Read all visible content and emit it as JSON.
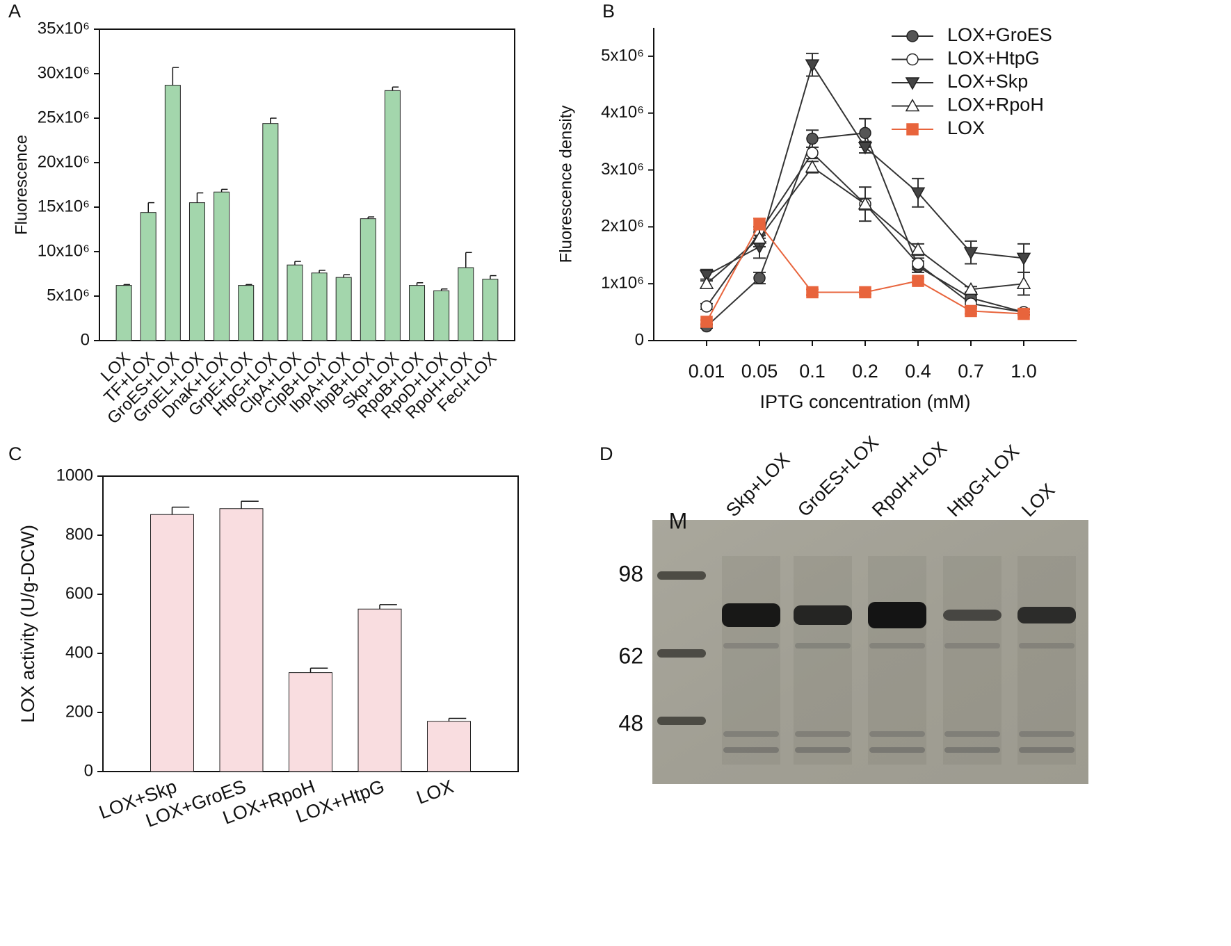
{
  "chart_data": [
    {
      "type": "bar",
      "panel_label": "A",
      "y_label": "Fluorescence",
      "color": "#a3d6ac",
      "categories": [
        "LOX",
        "TF+LOX",
        "GroES+LOX",
        "GroEL+LOX",
        "DnaK+LOX",
        "GrpE+LOX",
        "HtpG+LOX",
        "ClpA+LOX",
        "ClpB+LOX",
        "IbpA+LOX",
        "IbpB+LOX",
        "Skp+LOX",
        "RpoB+LOX",
        "RpoD+LOX",
        "RpoH+LOX",
        "FecI+LOX"
      ],
      "values": [
        6200000,
        14400000,
        28700000,
        15500000,
        16700000,
        6200000,
        24400000,
        8500000,
        7600000,
        7100000,
        13700000,
        28100000,
        6200000,
        5600000,
        8200000,
        6900000
      ],
      "errors": [
        100000,
        1100000,
        2000000,
        1100000,
        300000,
        100000,
        600000,
        400000,
        300000,
        300000,
        200000,
        400000,
        300000,
        200000,
        1700000,
        400000
      ],
      "ylim": [
        0,
        35000000
      ],
      "yticks": [
        0,
        {
          "value": 5000000,
          "label": "5x10⁶"
        },
        {
          "value": 10000000,
          "label": "10x10⁶"
        },
        {
          "value": 15000000,
          "label": "15x10⁶"
        },
        {
          "value": 20000000,
          "label": "20x10⁶"
        },
        {
          "value": 25000000,
          "label": "25x10⁶"
        },
        {
          "value": 30000000,
          "label": "30x10⁶"
        },
        {
          "value": 35000000,
          "label": "35x10⁶"
        }
      ],
      "frame": true
    },
    {
      "type": "line",
      "panel_label": "B",
      "y_label": "Fluorescence density",
      "x_label": "IPTG concentration (mM)",
      "categories": [
        "0.01",
        "0.05",
        "0.1",
        "0.2",
        "0.4",
        "0.7",
        "1.0"
      ],
      "series": [
        {
          "name": "LOX+GroES",
          "color": "#333333",
          "marker": "circle",
          "marker_fill": "#555555",
          "values": [
            250000,
            1100000,
            3550000,
            3650000,
            1300000,
            750000,
            500000
          ],
          "errors": [
            30000,
            100000,
            150000,
            250000,
            100000,
            50000,
            50000
          ]
        },
        {
          "name": "LOX+HtpG",
          "color": "#333333",
          "marker": "circle",
          "marker_fill": "#ffffff",
          "values": [
            600000,
            1900000,
            3300000,
            2400000,
            1350000,
            650000,
            500000
          ],
          "errors": [
            50000,
            100000,
            100000,
            300000,
            100000,
            50000,
            50000
          ]
        },
        {
          "name": "LOX+Skp",
          "color": "#333333",
          "marker": "triangle-down",
          "marker_fill": "#444444",
          "values": [
            1150000,
            1650000,
            4850000,
            3400000,
            2600000,
            1550000,
            1450000
          ],
          "errors": [
            100000,
            200000,
            200000,
            100000,
            250000,
            200000,
            250000
          ]
        },
        {
          "name": "LOX+RpoH",
          "color": "#333333",
          "marker": "triangle-up",
          "marker_fill": "#ffffff",
          "values": [
            1000000,
            1800000,
            3050000,
            2400000,
            1600000,
            900000,
            1000000
          ],
          "errors": [
            80000,
            150000,
            100000,
            100000,
            100000,
            50000,
            200000
          ]
        },
        {
          "name": "LOX",
          "color": "#e8643c",
          "marker": "square",
          "marker_fill": "#e8643c",
          "values": [
            330000,
            2050000,
            850000,
            850000,
            1050000,
            520000,
            470000
          ],
          "errors": [
            30000,
            100000,
            50000,
            30000,
            50000,
            50000,
            30000
          ]
        }
      ],
      "ylim": [
        0,
        5500000
      ],
      "yticks": [
        0,
        {
          "value": 1000000,
          "label": "1x10⁶"
        },
        {
          "value": 2000000,
          "label": "2x10⁶"
        },
        {
          "value": 3000000,
          "label": "3x10⁶"
        },
        {
          "value": 4000000,
          "label": "4x10⁶"
        },
        {
          "value": 5000000,
          "label": "5x10⁶"
        }
      ],
      "legend": "top-right",
      "frame": false
    },
    {
      "type": "bar",
      "panel_label": "C",
      "y_label": "LOX activity (U/g-DCW)",
      "color": "#f9dde0",
      "categories": [
        "LOX+Skp",
        "LOX+GroES",
        "LOX+RpoH",
        "LOX+HtpG",
        "LOX"
      ],
      "values": [
        870,
        890,
        335,
        550,
        170
      ],
      "errors": [
        25,
        25,
        15,
        15,
        10
      ],
      "ylim": [
        0,
        1000
      ],
      "yticks": [
        0,
        200,
        400,
        600,
        800,
        1000
      ],
      "frame": true
    }
  ],
  "gel": {
    "panel_label": "D",
    "marker_lane": "M",
    "lanes": [
      "Skp+LOX",
      "GroES+LOX",
      "RpoH+LOX",
      "HtpG+LOX",
      "LOX"
    ],
    "markers": [
      98,
      62,
      48
    ]
  }
}
